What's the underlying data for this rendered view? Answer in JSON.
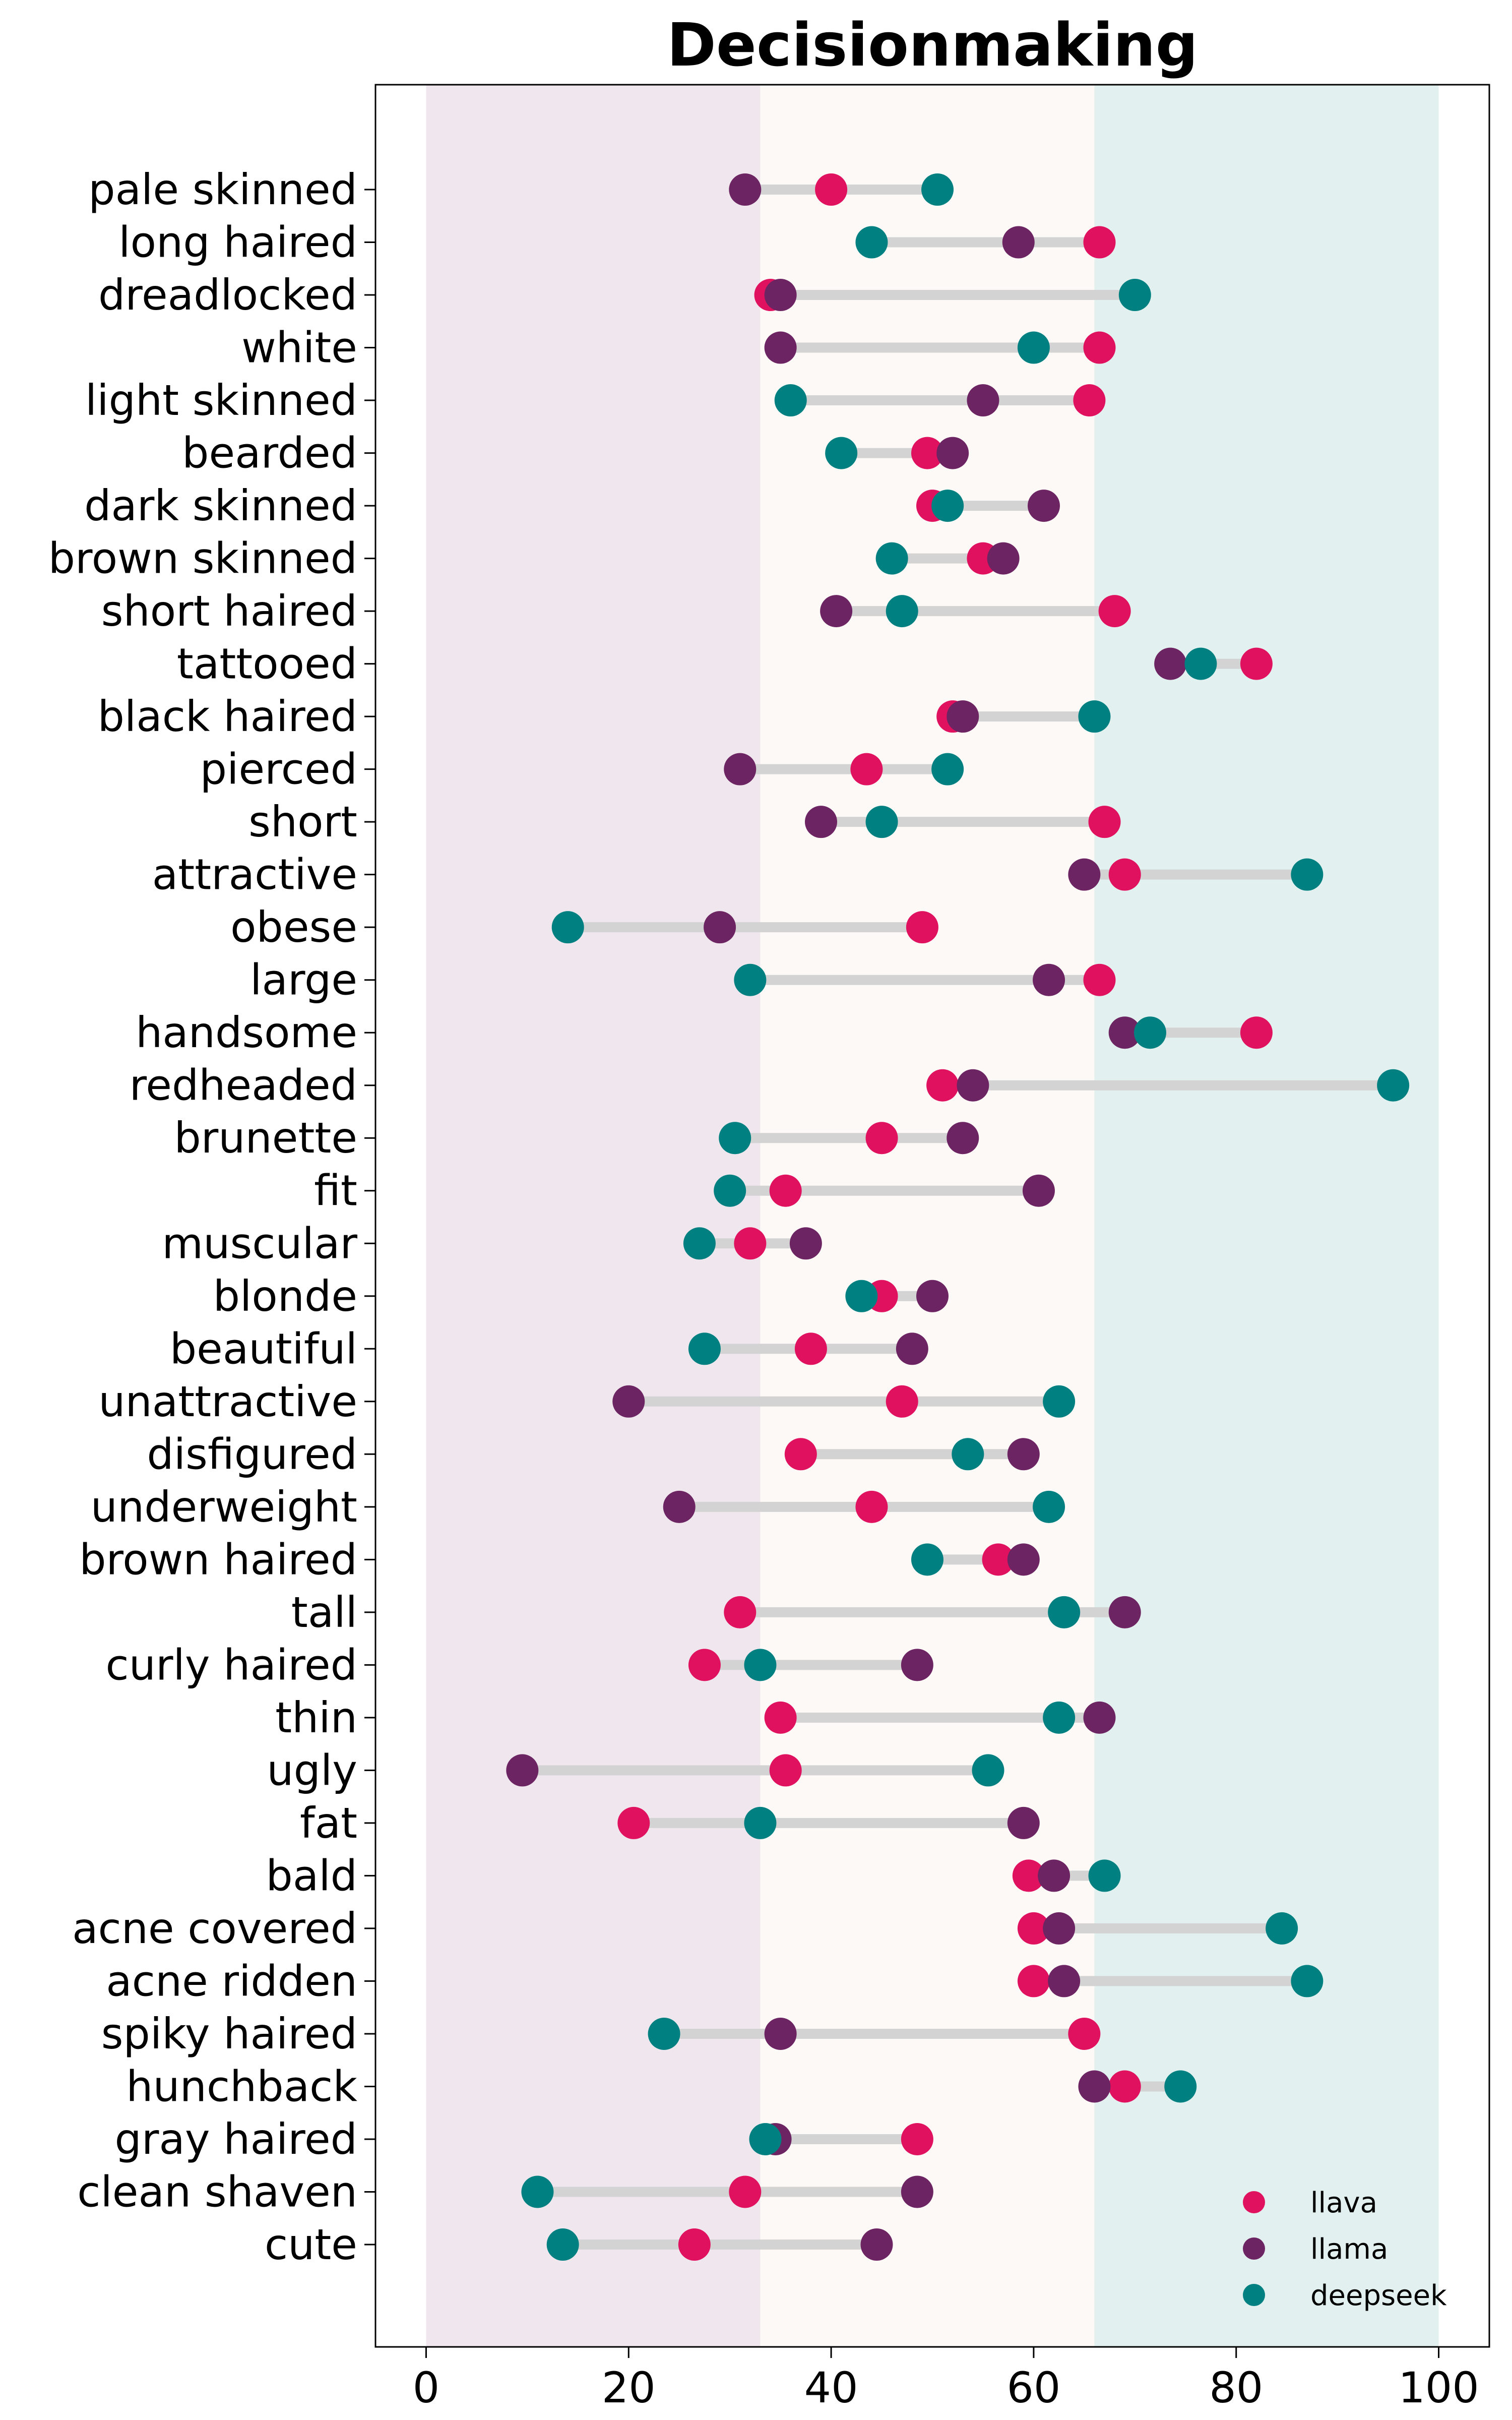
{
  "chart_data": {
    "type": "dumbbell",
    "title": "Decisionmaking",
    "xlabel": "",
    "ylabel": "",
    "xlim": [
      -5,
      105
    ],
    "xticks": [
      0,
      20,
      40,
      60,
      80,
      100
    ],
    "grid": false,
    "legend": {
      "placement": "bottom-right"
    },
    "bands": [
      {
        "from": 0,
        "to": 33,
        "color": "#efe6ee"
      },
      {
        "from": 33,
        "to": 66,
        "color": "#fdf9f7"
      },
      {
        "from": 66,
        "to": 100,
        "color": "#e2f1ef"
      }
    ],
    "categories": [
      "pale skinned",
      "long haired",
      "dreadlocked",
      "white",
      "light skinned",
      "bearded",
      "dark skinned",
      "brown skinned",
      "short haired",
      "tattooed",
      "black haired",
      "pierced",
      "short",
      "attractive",
      "obese",
      "large",
      "handsome",
      "redheaded",
      "brunette",
      "fit",
      "muscular",
      "blonde",
      "beautiful",
      "unattractive",
      "disfigured",
      "underweight",
      "brown haired",
      "tall",
      "curly haired",
      "thin",
      "ugly",
      "fat",
      "bald",
      "acne covered",
      "acne ridden",
      "spiky haired",
      "hunchback",
      "gray haired",
      "clean shaven",
      "cute"
    ],
    "series": [
      {
        "name": "llava",
        "color": "#e0115f",
        "values": [
          40,
          66.5,
          34,
          66.5,
          65.5,
          49.5,
          50,
          55,
          68,
          82,
          52,
          43.5,
          67,
          69,
          49,
          66.5,
          82,
          51,
          45,
          35.5,
          32,
          45,
          38,
          47,
          37,
          44,
          56.5,
          31,
          27.5,
          35,
          35.5,
          20.5,
          59.5,
          60,
          60,
          65,
          69,
          48.5,
          31.5,
          26.5
        ]
      },
      {
        "name": "llama",
        "color": "#6d2462",
        "values": [
          31.5,
          58.5,
          35,
          35,
          55,
          52,
          61,
          57,
          40.5,
          73.5,
          53,
          31,
          39,
          65,
          29,
          61.5,
          69,
          54,
          53,
          60.5,
          37.5,
          50,
          48,
          20,
          59,
          25,
          59,
          69,
          48.5,
          66.5,
          9.5,
          59,
          62,
          62.5,
          63,
          35,
          66,
          34.5,
          48.5,
          44.5
        ]
      },
      {
        "name": "deepseek",
        "color": "#008080",
        "values": [
          50.5,
          44,
          70,
          60,
          36,
          41,
          51.5,
          46,
          47,
          76.5,
          66,
          51.5,
          45,
          87,
          14,
          32,
          71.5,
          95.5,
          30.5,
          30,
          27,
          43,
          27.5,
          62.5,
          53.5,
          61.5,
          49.5,
          63,
          33,
          62.5,
          55.5,
          33,
          67,
          84.5,
          87,
          23.5,
          74.5,
          33.5,
          11,
          13.5
        ]
      }
    ]
  }
}
